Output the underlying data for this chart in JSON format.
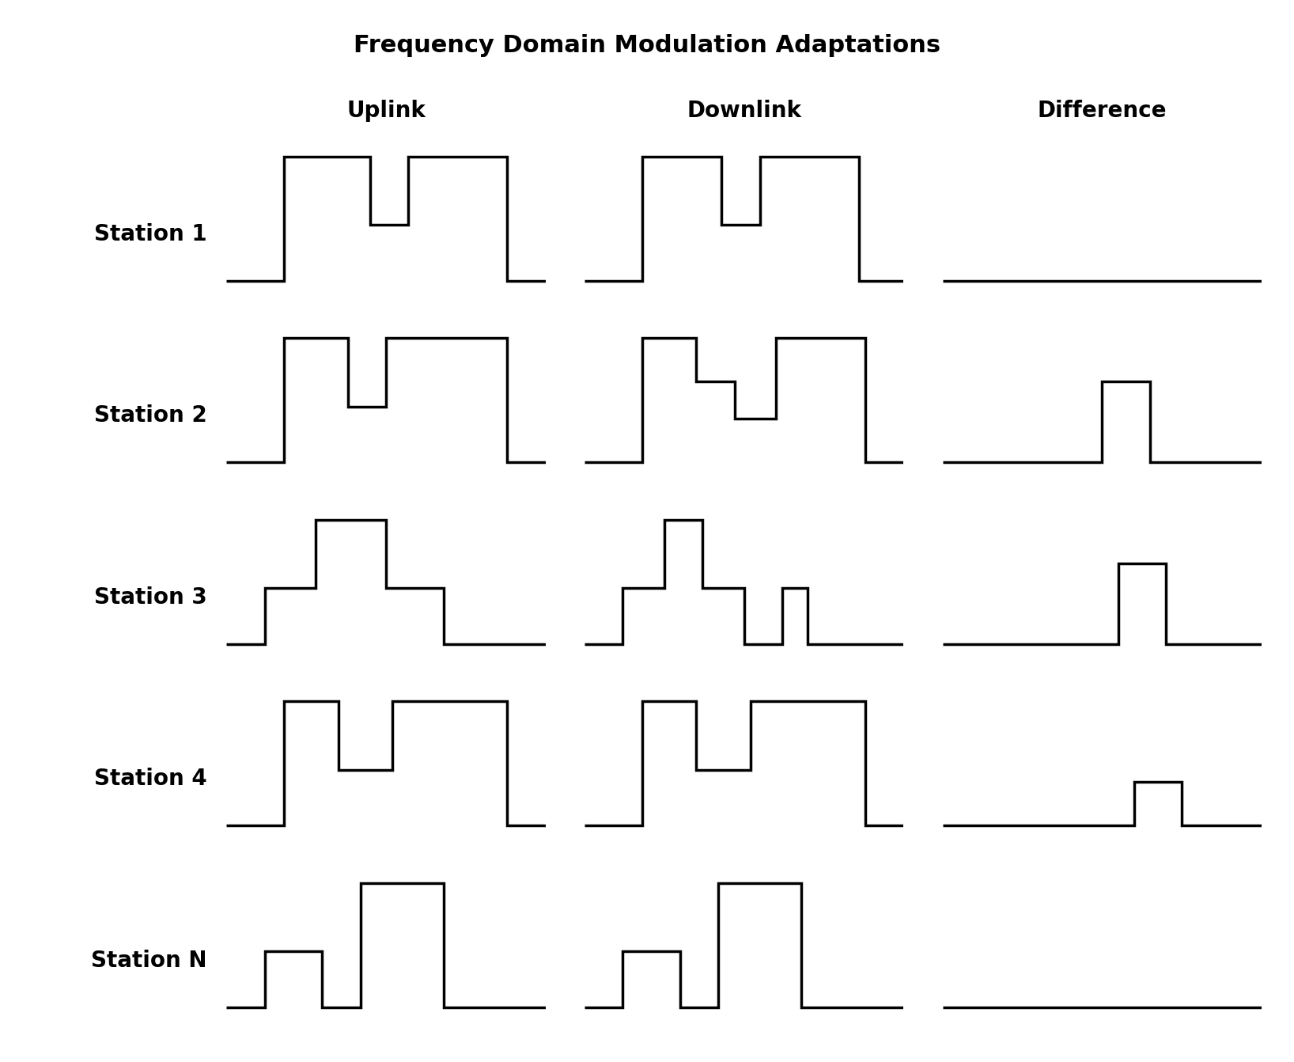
{
  "title": "Frequency Domain Modulation Adaptations",
  "col_labels": [
    "Uplink",
    "Downlink",
    "Difference"
  ],
  "row_labels": [
    "Station 1",
    "Station 2",
    "Station 3",
    "Station 4",
    "Station N"
  ],
  "title_fontsize": 22,
  "col_label_fontsize": 20,
  "row_label_fontsize": 20,
  "background_color": "#ffffff",
  "line_color": "#000000",
  "line_width": 2.5,
  "waveforms": {
    "station1": {
      "uplink": [
        0.0,
        0,
        0.0,
        0,
        0.18,
        0,
        0.18,
        1,
        0.45,
        1,
        0.45,
        0.45,
        0.57,
        0.45,
        0.57,
        1,
        0.88,
        1,
        0.88,
        0,
        1.0,
        0
      ],
      "downlink": [
        0.0,
        0,
        0.0,
        0,
        0.18,
        0,
        0.18,
        1,
        0.43,
        1,
        0.43,
        0.45,
        0.55,
        0.45,
        0.55,
        1,
        0.86,
        1,
        0.86,
        0,
        1.0,
        0
      ],
      "diff": [
        0.0,
        0,
        1.0,
        0
      ]
    },
    "station2": {
      "uplink": [
        0.0,
        0,
        0.18,
        0,
        0.18,
        1,
        0.38,
        1,
        0.38,
        0.45,
        0.5,
        0.45,
        0.5,
        1,
        0.88,
        1,
        0.88,
        0,
        1.0,
        0
      ],
      "downlink": [
        0.0,
        0,
        0.18,
        0,
        0.18,
        1,
        0.35,
        1,
        0.35,
        0.65,
        0.47,
        0.65,
        0.47,
        0.35,
        0.6,
        0.35,
        0.6,
        1,
        0.88,
        1,
        0.88,
        0,
        1.0,
        0
      ],
      "diff": [
        0.0,
        0,
        0.5,
        0,
        0.5,
        0.65,
        0.65,
        0.65,
        0.65,
        0,
        1.0,
        0
      ]
    },
    "station3": {
      "uplink": [
        0.0,
        0,
        0.12,
        0,
        0.12,
        0.45,
        0.28,
        0.45,
        0.28,
        1,
        0.5,
        1,
        0.5,
        0.45,
        0.68,
        0.45,
        0.68,
        0,
        1.0,
        0
      ],
      "downlink": [
        0.0,
        0,
        0.12,
        0,
        0.12,
        0.45,
        0.25,
        0.45,
        0.25,
        1,
        0.37,
        1,
        0.37,
        0.45,
        0.5,
        0.45,
        0.5,
        0,
        0.62,
        0,
        0.62,
        0.45,
        0.7,
        0.45,
        0.7,
        0,
        1.0,
        0
      ],
      "diff": [
        0.0,
        0,
        0.55,
        0,
        0.55,
        0.65,
        0.7,
        0.65,
        0.7,
        0,
        1.0,
        0
      ]
    },
    "station4": {
      "uplink": [
        0.0,
        0,
        0.18,
        0,
        0.18,
        1,
        0.35,
        1,
        0.35,
        0.45,
        0.52,
        0.45,
        0.52,
        1,
        0.88,
        1,
        0.88,
        0,
        1.0,
        0
      ],
      "downlink": [
        0.0,
        0,
        0.18,
        0,
        0.18,
        1,
        0.35,
        1,
        0.35,
        0.45,
        0.52,
        0.45,
        0.52,
        1,
        0.88,
        1,
        0.88,
        0,
        1.0,
        0
      ],
      "diff": [
        0.0,
        0,
        0.6,
        0,
        0.6,
        0.35,
        0.75,
        0.35,
        0.75,
        0,
        1.0,
        0
      ]
    },
    "stationN": {
      "uplink": [
        0.0,
        0,
        0.12,
        0,
        0.12,
        0.45,
        0.3,
        0.45,
        0.3,
        0,
        0.42,
        0,
        0.42,
        1,
        0.68,
        1,
        0.68,
        0,
        1.0,
        0
      ],
      "downlink": [
        0.0,
        0,
        0.12,
        0,
        0.12,
        0.45,
        0.3,
        0.45,
        0.3,
        0,
        0.42,
        0,
        0.42,
        1,
        0.68,
        1,
        0.68,
        0,
        1.0,
        0
      ],
      "diff": [
        0.0,
        0,
        1.0,
        0
      ]
    }
  }
}
